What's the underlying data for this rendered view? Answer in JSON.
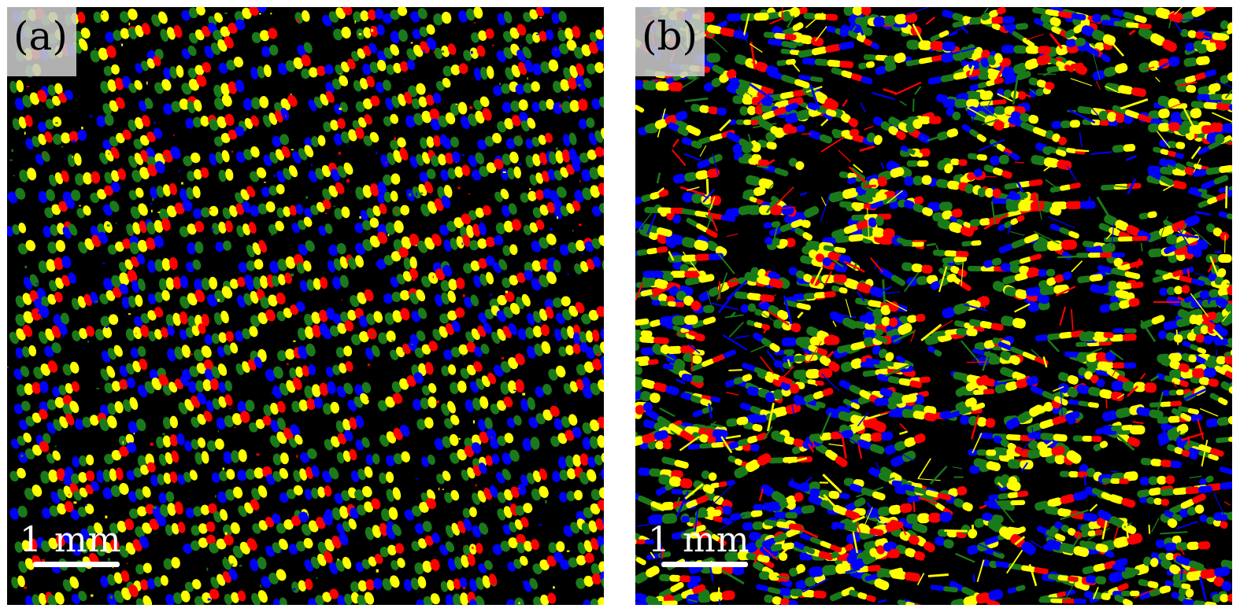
{
  "panels": [
    {
      "id": "a",
      "label": "(a)",
      "scale_label": "1 mm",
      "pattern": "ordered-streaks"
    },
    {
      "id": "b",
      "label": "(b)",
      "scale_label": "1 mm",
      "pattern": "dense-columns"
    }
  ],
  "colors": {
    "background": "#000000",
    "red": "#ff0000",
    "yellow": "#ffff00",
    "green": "#1a7a1a",
    "blue": "#0000ff",
    "label_box": "#c8c8c8",
    "scale": "#ffffff"
  }
}
